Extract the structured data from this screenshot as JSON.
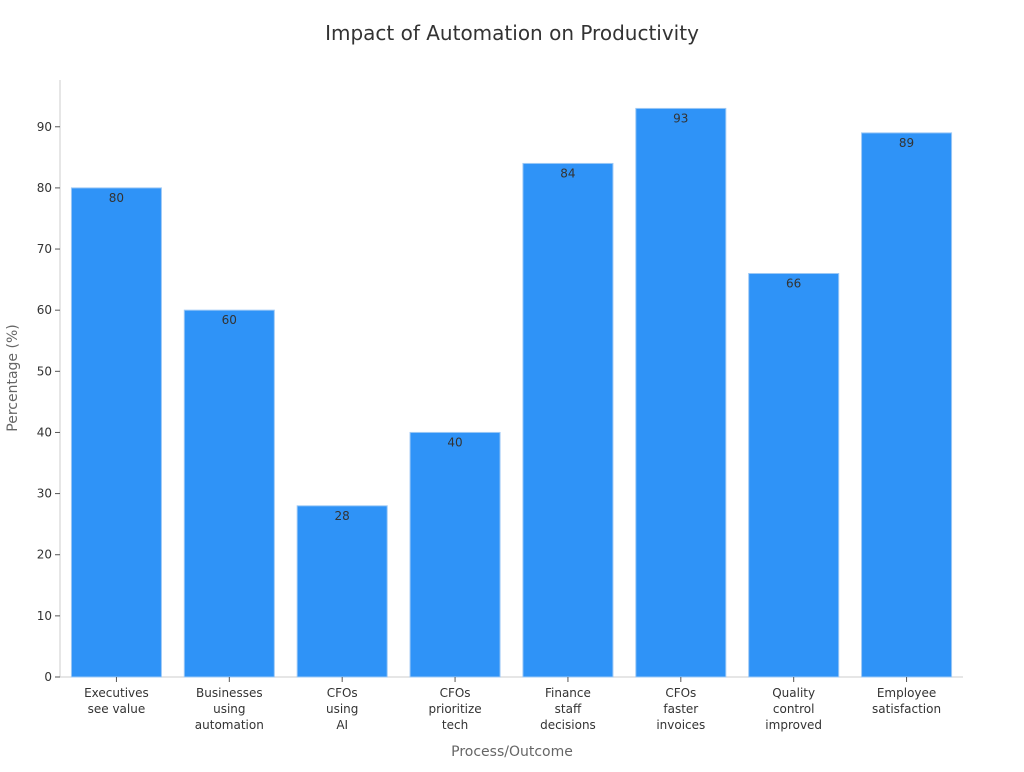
{
  "chart_data": {
    "type": "bar",
    "title": "Impact of Automation on Productivity",
    "xlabel": "Process/Outcome",
    "ylabel": "Percentage (%)",
    "categories": [
      [
        "Executives",
        "see value"
      ],
      [
        "Businesses",
        "using",
        "automation"
      ],
      [
        "CFOs",
        "using",
        "AI"
      ],
      [
        "CFOs",
        "prioritize",
        "tech"
      ],
      [
        "Finance",
        "staff",
        "decisions"
      ],
      [
        "CFOs",
        "faster",
        "invoices"
      ],
      [
        "Quality",
        "control",
        "improved"
      ],
      [
        "Employee",
        "satisfaction"
      ]
    ],
    "values": [
      80,
      60,
      28,
      40,
      84,
      93,
      66,
      89
    ],
    "ylim": [
      0,
      97.65
    ],
    "yticks": [
      0,
      10,
      20,
      30,
      40,
      50,
      60,
      70,
      80,
      90
    ],
    "grid": false,
    "legend": "none",
    "colors": {
      "bar": "#2f93f7",
      "bar_edge": "#9cc8f5",
      "axis": "#cccccc",
      "text": "#333333",
      "label": "#666666"
    }
  }
}
